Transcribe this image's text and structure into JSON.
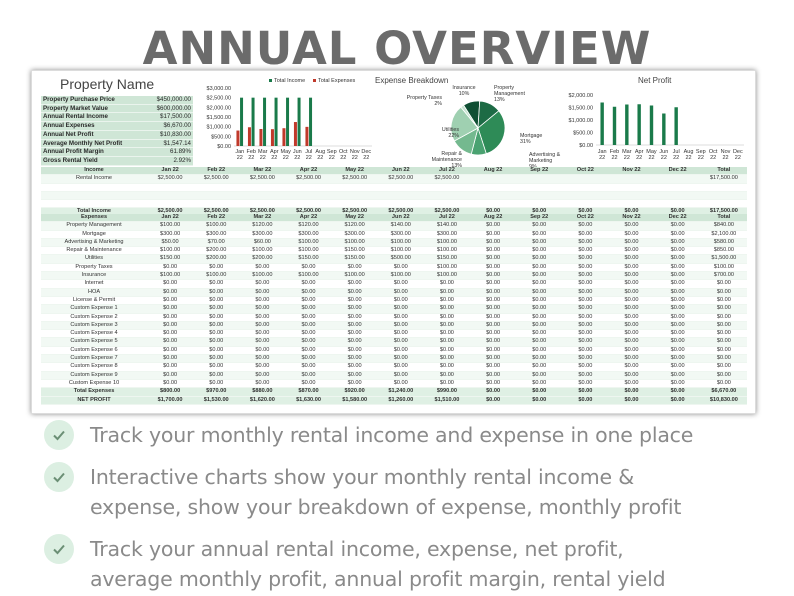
{
  "title": "ANNUAL OVERVIEW",
  "property_name": "Property Name",
  "summary": [
    {
      "label": "Property Purchase Price",
      "value": "$450,000.00"
    },
    {
      "label": "Property Market Value",
      "value": "$600,000.00"
    },
    {
      "label": "Annual Rental Income",
      "value": "$17,500.00"
    },
    {
      "label": "Annual Expenses",
      "value": "$6,670.00"
    },
    {
      "label": "Annual Net Profit",
      "value": "$10,830.00"
    },
    {
      "label": "Average Monthly Net Profit",
      "value": "$1,547.14"
    },
    {
      "label": "Annual Profit Margin",
      "value": "61.89%"
    },
    {
      "label": "Gross Rental Yield",
      "value": "2.92%"
    }
  ],
  "colors": {
    "income": "#1a7a4a",
    "expense": "#c0392b",
    "header": "#cfe6d6",
    "check": "#dcefe2"
  },
  "chart_data": [
    {
      "type": "bar",
      "title": "",
      "categories": [
        "Jan 22",
        "Feb 22",
        "Mar 22",
        "Apr 22",
        "May 22",
        "Jun 22",
        "Jul 22",
        "Aug 22",
        "Sep 22",
        "Oct 22",
        "Nov 22",
        "Dec 22"
      ],
      "y_ticks": [
        "$0.00",
        "$500.00",
        "$1,000.00",
        "$1,500.00",
        "$2,000.00",
        "$2,500.00",
        "$3,000.00"
      ],
      "ylim": [
        0,
        3000
      ],
      "legend": "top",
      "series": [
        {
          "name": "Total Income",
          "values": [
            2500,
            2500,
            2500,
            2500,
            2500,
            2500,
            2500,
            0,
            0,
            0,
            0,
            0
          ]
        },
        {
          "name": "Total Expenses",
          "values": [
            800,
            970,
            880,
            870,
            920,
            1240,
            990,
            0,
            0,
            0,
            0,
            0
          ]
        }
      ]
    },
    {
      "type": "pie",
      "title": "Expense Breakdown",
      "slices": [
        {
          "label": "Insurance",
          "pct": "10%",
          "value": 10
        },
        {
          "label": "Property Management",
          "pct": "13%",
          "value": 13
        },
        {
          "label": "Mortgage",
          "pct": "31%",
          "value": 31
        },
        {
          "label": "Advertising & Marketing",
          "pct": "9%",
          "value": 9
        },
        {
          "label": "Repair & Maintenance",
          "pct": "13%",
          "value": 13
        },
        {
          "label": "Utilities",
          "pct": "22%",
          "value": 22
        },
        {
          "label": "Property Taxes",
          "pct": "2%",
          "value": 2
        }
      ]
    },
    {
      "type": "bar",
      "title": "Net Profit",
      "categories": [
        "Jan 22",
        "Feb 22",
        "Mar 22",
        "Apr 22",
        "May 22",
        "Jun 22",
        "Jul 22",
        "Aug 22",
        "Sep 22",
        "Oct 22",
        "Nov 22",
        "Dec 22"
      ],
      "y_ticks": [
        "$0.00",
        "$500.00",
        "$1,000.00",
        "$1,500.00",
        "$2,000.00"
      ],
      "ylim": [
        0,
        2000
      ],
      "series": [
        {
          "values": [
            1700,
            1530,
            1620,
            1630,
            1580,
            1260,
            1510,
            0,
            0,
            0,
            0,
            0
          ]
        }
      ]
    }
  ],
  "income_table": {
    "header": [
      "Income",
      "Jan 22",
      "Feb 22",
      "Mar 22",
      "Apr 22",
      "May 22",
      "Jun 22",
      "Jul 22",
      "Aug 22",
      "Sep 22",
      "Oct 22",
      "Nov 22",
      "Dec 22",
      "Total"
    ],
    "rows": [
      [
        "Rental Income",
        "$2,500.00",
        "$2,500.00",
        "$2,500.00",
        "$2,500.00",
        "$2,500.00",
        "$2,500.00",
        "$2,500.00",
        "",
        "",
        "",
        "",
        "",
        "$17,500.00"
      ],
      [
        "",
        "",
        "",
        "",
        "",
        "",
        "",
        "",
        "",
        "",
        "",
        "",
        "",
        ""
      ],
      [
        "",
        "",
        "",
        "",
        "",
        "",
        "",
        "",
        "",
        "",
        "",
        "",
        "",
        ""
      ],
      [
        "",
        "",
        "",
        "",
        "",
        "",
        "",
        "",
        "",
        "",
        "",
        "",
        "",
        ""
      ]
    ],
    "total": [
      "Total Income",
      "$2,500.00",
      "$2,500.00",
      "$2,500.00",
      "$2,500.00",
      "$2,500.00",
      "$2,500.00",
      "$2,500.00",
      "$0.00",
      "$0.00",
      "$0.00",
      "$0.00",
      "$0.00",
      "$17,500.00"
    ]
  },
  "expense_table": {
    "header": [
      "Expenses",
      "Jan 22",
      "Feb 22",
      "Mar 22",
      "Apr 22",
      "May 22",
      "Jun 22",
      "Jul 22",
      "Aug 22",
      "Sep 22",
      "Oct 22",
      "Nov 22",
      "Dec 22",
      "Total"
    ],
    "rows": [
      [
        "Property Management",
        "$100.00",
        "$100.00",
        "$120.00",
        "$120.00",
        "$120.00",
        "$140.00",
        "$140.00",
        "$0.00",
        "$0.00",
        "$0.00",
        "$0.00",
        "$0.00",
        "$840.00"
      ],
      [
        "Mortgage",
        "$300.00",
        "$300.00",
        "$300.00",
        "$300.00",
        "$300.00",
        "$300.00",
        "$300.00",
        "$0.00",
        "$0.00",
        "$0.00",
        "$0.00",
        "$0.00",
        "$2,100.00"
      ],
      [
        "Advertising & Marketing",
        "$50.00",
        "$70.00",
        "$60.00",
        "$100.00",
        "$100.00",
        "$100.00",
        "$100.00",
        "$0.00",
        "$0.00",
        "$0.00",
        "$0.00",
        "$0.00",
        "$580.00"
      ],
      [
        "Repair & Maintenance",
        "$100.00",
        "$200.00",
        "$100.00",
        "$100.00",
        "$150.00",
        "$100.00",
        "$100.00",
        "$0.00",
        "$0.00",
        "$0.00",
        "$0.00",
        "$0.00",
        "$850.00"
      ],
      [
        "Utilities",
        "$150.00",
        "$200.00",
        "$200.00",
        "$150.00",
        "$150.00",
        "$500.00",
        "$150.00",
        "$0.00",
        "$0.00",
        "$0.00",
        "$0.00",
        "$0.00",
        "$1,500.00"
      ],
      [
        "Property Taxes",
        "$0.00",
        "$0.00",
        "$0.00",
        "$0.00",
        "$0.00",
        "$0.00",
        "$100.00",
        "$0.00",
        "$0.00",
        "$0.00",
        "$0.00",
        "$0.00",
        "$100.00"
      ],
      [
        "Insurance",
        "$100.00",
        "$100.00",
        "$100.00",
        "$100.00",
        "$100.00",
        "$100.00",
        "$100.00",
        "$0.00",
        "$0.00",
        "$0.00",
        "$0.00",
        "$0.00",
        "$700.00"
      ],
      [
        "Internet",
        "$0.00",
        "$0.00",
        "$0.00",
        "$0.00",
        "$0.00",
        "$0.00",
        "$0.00",
        "$0.00",
        "$0.00",
        "$0.00",
        "$0.00",
        "$0.00",
        "$0.00"
      ],
      [
        "HOA",
        "$0.00",
        "$0.00",
        "$0.00",
        "$0.00",
        "$0.00",
        "$0.00",
        "$0.00",
        "$0.00",
        "$0.00",
        "$0.00",
        "$0.00",
        "$0.00",
        "$0.00"
      ],
      [
        "License & Permit",
        "$0.00",
        "$0.00",
        "$0.00",
        "$0.00",
        "$0.00",
        "$0.00",
        "$0.00",
        "$0.00",
        "$0.00",
        "$0.00",
        "$0.00",
        "$0.00",
        "$0.00"
      ],
      [
        "Custom Expense 1",
        "$0.00",
        "$0.00",
        "$0.00",
        "$0.00",
        "$0.00",
        "$0.00",
        "$0.00",
        "$0.00",
        "$0.00",
        "$0.00",
        "$0.00",
        "$0.00",
        "$0.00"
      ],
      [
        "Custom Expense 2",
        "$0.00",
        "$0.00",
        "$0.00",
        "$0.00",
        "$0.00",
        "$0.00",
        "$0.00",
        "$0.00",
        "$0.00",
        "$0.00",
        "$0.00",
        "$0.00",
        "$0.00"
      ],
      [
        "Custom Expense 3",
        "$0.00",
        "$0.00",
        "$0.00",
        "$0.00",
        "$0.00",
        "$0.00",
        "$0.00",
        "$0.00",
        "$0.00",
        "$0.00",
        "$0.00",
        "$0.00",
        "$0.00"
      ],
      [
        "Custom Expense 4",
        "$0.00",
        "$0.00",
        "$0.00",
        "$0.00",
        "$0.00",
        "$0.00",
        "$0.00",
        "$0.00",
        "$0.00",
        "$0.00",
        "$0.00",
        "$0.00",
        "$0.00"
      ],
      [
        "Custom Expense 5",
        "$0.00",
        "$0.00",
        "$0.00",
        "$0.00",
        "$0.00",
        "$0.00",
        "$0.00",
        "$0.00",
        "$0.00",
        "$0.00",
        "$0.00",
        "$0.00",
        "$0.00"
      ],
      [
        "Custom Expense 6",
        "$0.00",
        "$0.00",
        "$0.00",
        "$0.00",
        "$0.00",
        "$0.00",
        "$0.00",
        "$0.00",
        "$0.00",
        "$0.00",
        "$0.00",
        "$0.00",
        "$0.00"
      ],
      [
        "Custom Expense 7",
        "$0.00",
        "$0.00",
        "$0.00",
        "$0.00",
        "$0.00",
        "$0.00",
        "$0.00",
        "$0.00",
        "$0.00",
        "$0.00",
        "$0.00",
        "$0.00",
        "$0.00"
      ],
      [
        "Custom Expense 8",
        "$0.00",
        "$0.00",
        "$0.00",
        "$0.00",
        "$0.00",
        "$0.00",
        "$0.00",
        "$0.00",
        "$0.00",
        "$0.00",
        "$0.00",
        "$0.00",
        "$0.00"
      ],
      [
        "Custom Expense 9",
        "$0.00",
        "$0.00",
        "$0.00",
        "$0.00",
        "$0.00",
        "$0.00",
        "$0.00",
        "$0.00",
        "$0.00",
        "$0.00",
        "$0.00",
        "$0.00",
        "$0.00"
      ],
      [
        "Custom Expense 10",
        "$0.00",
        "$0.00",
        "$0.00",
        "$0.00",
        "$0.00",
        "$0.00",
        "$0.00",
        "$0.00",
        "$0.00",
        "$0.00",
        "$0.00",
        "$0.00",
        "$0.00"
      ]
    ],
    "total": [
      "Total Expenses",
      "$800.00",
      "$970.00",
      "$880.00",
      "$870.00",
      "$920.00",
      "$1,240.00",
      "$990.00",
      "$0.00",
      "$0.00",
      "$0.00",
      "$0.00",
      "$0.00",
      "$6,670.00"
    ]
  },
  "net_profit_row": [
    "NET PROFIT",
    "$1,700.00",
    "$1,530.00",
    "$1,620.00",
    "$1,630.00",
    "$1,580.00",
    "$1,260.00",
    "$1,510.00",
    "$0.00",
    "$0.00",
    "$0.00",
    "$0.00",
    "$0.00",
    "$10,830.00"
  ],
  "bullets": [
    {
      "lines": [
        "Track your monthly rental income and expense in one place"
      ]
    },
    {
      "lines": [
        "Interactive charts show your monthly rental income &",
        "expense, show your breakdown of expense, monthly profit"
      ]
    },
    {
      "lines": [
        "Track your annual rental income, expense, net profit,",
        "average monthly profit, annual profit margin, rental yield"
      ]
    }
  ]
}
